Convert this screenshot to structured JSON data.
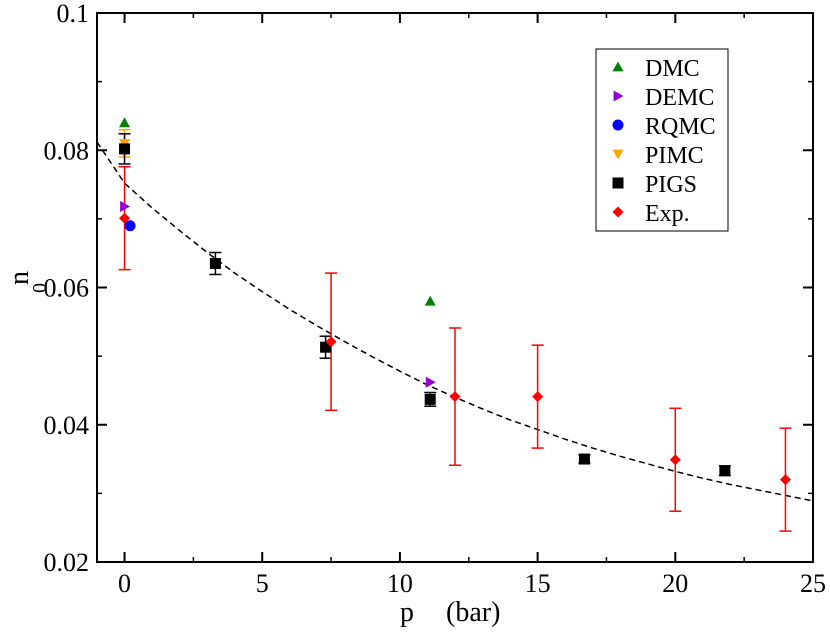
{
  "chart_data": {
    "type": "scatter",
    "title": "",
    "xlabel": "p",
    "xlabel_unit": "(bar)",
    "ylabel_main": "n",
    "ylabel_sub": "0",
    "xlim": [
      -1,
      25
    ],
    "ylim": [
      0.02,
      0.1
    ],
    "x_ticks": [
      0,
      5,
      10,
      15,
      20,
      25
    ],
    "x_tick_labels": [
      "0",
      "5",
      "10",
      "15",
      "20",
      "25"
    ],
    "y_ticks": [
      0.02,
      0.04,
      0.06,
      0.08,
      0.1
    ],
    "y_tick_labels": [
      "0.02",
      "0.04",
      "0.06",
      "0.08",
      "0.1"
    ],
    "legend_position": "top-right",
    "fit_curve": {
      "name": "fit",
      "style": "dashed",
      "color": "#000000",
      "x": [
        -1,
        0,
        1,
        2,
        3,
        4,
        5,
        6,
        7,
        8,
        9,
        10,
        11,
        12,
        13,
        14,
        15,
        16,
        17,
        18,
        19,
        20,
        21,
        22,
        23,
        24,
        25
      ],
      "y": [
        0.0812,
        0.0752,
        0.0716,
        0.0683,
        0.0651,
        0.0621,
        0.0594,
        0.0568,
        0.0544,
        0.0521,
        0.0499,
        0.0478,
        0.0458,
        0.044,
        0.0423,
        0.0407,
        0.0393,
        0.0379,
        0.0366,
        0.0354,
        0.0343,
        0.0332,
        0.0322,
        0.0313,
        0.0305,
        0.0297,
        0.0289
      ]
    },
    "series": [
      {
        "name": "DMC",
        "marker": "triangle-up",
        "color": "#008000",
        "points": [
          {
            "x": 0.0,
            "y": 0.084
          },
          {
            "x": 11.1,
            "y": 0.058
          }
        ]
      },
      {
        "name": "DEMC",
        "marker": "triangle-right",
        "color": "#9400d3",
        "points": [
          {
            "x": 0.0,
            "y": 0.0718
          },
          {
            "x": 11.1,
            "y": 0.0462
          }
        ]
      },
      {
        "name": "RQMC",
        "marker": "circle",
        "color": "#0000ff",
        "points": [
          {
            "x": 0.2,
            "y": 0.069
          }
        ]
      },
      {
        "name": "PIMC",
        "marker": "triangle-down",
        "color": "#ffa500",
        "points": [
          {
            "x": 0.0,
            "y": 0.081,
            "err": 0.002
          }
        ]
      },
      {
        "name": "PIGS",
        "marker": "square",
        "color": "#000000",
        "points": [
          {
            "x": 0.0,
            "y": 0.0802,
            "err": 0.0022
          },
          {
            "x": 3.3,
            "y": 0.0635,
            "err": 0.0016
          },
          {
            "x": 7.3,
            "y": 0.0513,
            "err": 0.0016
          },
          {
            "x": 11.1,
            "y": 0.0437,
            "err": 0.001
          },
          {
            "x": 16.7,
            "y": 0.035,
            "err": 0.0006
          },
          {
            "x": 21.8,
            "y": 0.0333,
            "err": 0.0007
          }
        ]
      },
      {
        "name": "Exp.",
        "marker": "diamond",
        "color": "#ff0000",
        "points": [
          {
            "x": 0.0,
            "y": 0.0701,
            "err": 0.0075
          },
          {
            "x": 7.5,
            "y": 0.0521,
            "err": 0.01
          },
          {
            "x": 12.0,
            "y": 0.0441,
            "err": 0.01
          },
          {
            "x": 15.0,
            "y": 0.0441,
            "err": 0.0075
          },
          {
            "x": 20.0,
            "y": 0.0349,
            "err": 0.0075
          },
          {
            "x": 24.0,
            "y": 0.032,
            "err": 0.0075
          }
        ]
      }
    ]
  }
}
